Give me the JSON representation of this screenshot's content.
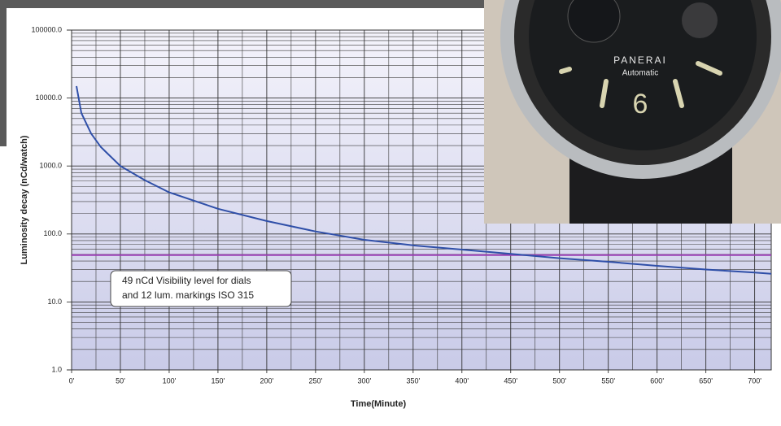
{
  "chart_data": {
    "type": "line",
    "log_y": true,
    "grid": true,
    "y_label": "Luminosity decay (nCd/watch)",
    "x_label": "Time(Minute)",
    "xlim": [
      0,
      717
    ],
    "ylim": [
      1,
      100000
    ],
    "xticks": [
      {
        "value": 0,
        "label": "0'"
      },
      {
        "value": 50,
        "label": "50'"
      },
      {
        "value": 100,
        "label": "100'"
      },
      {
        "value": 150,
        "label": "150'"
      },
      {
        "value": 200,
        "label": "200'"
      },
      {
        "value": 250,
        "label": "250'"
      },
      {
        "value": 300,
        "label": "300'"
      },
      {
        "value": 350,
        "label": "350'"
      },
      {
        "value": 400,
        "label": "400'"
      },
      {
        "value": 450,
        "label": "450'"
      },
      {
        "value": 500,
        "label": "500'"
      },
      {
        "value": 550,
        "label": "550'"
      },
      {
        "value": 600,
        "label": "600'"
      },
      {
        "value": 650,
        "label": "650'"
      },
      {
        "value": 700,
        "label": "700'"
      }
    ],
    "yticks": [
      {
        "value": 1,
        "label": "1.0"
      },
      {
        "value": 10,
        "label": "10.0"
      },
      {
        "value": 100,
        "label": "100.0"
      },
      {
        "value": 1000,
        "label": "1000.0"
      },
      {
        "value": 10000,
        "label": "10000.0"
      },
      {
        "value": 100000,
        "label": "100000.0"
      }
    ],
    "series": [
      {
        "color": "#2f4fa8",
        "x": [
          5,
          10,
          20,
          30,
          50,
          75,
          100,
          150,
          200,
          250,
          300,
          350,
          400,
          450,
          500,
          550,
          600,
          650,
          700,
          717
        ],
        "values": [
          15000,
          6000,
          3000,
          1900,
          1000,
          620,
          410,
          235,
          155,
          109,
          82,
          68,
          59,
          51,
          44,
          39,
          34,
          30,
          27,
          26
        ]
      }
    ],
    "reference_line": {
      "value": 49,
      "color": "#9b3fb5"
    },
    "annotation": [
      "49 nCd Visibility level for dials",
      "and 12 lum. markings ISO 315"
    ]
  },
  "photo": {
    "brand": "PANERAI",
    "model": "Automatic",
    "numeral": "6"
  }
}
